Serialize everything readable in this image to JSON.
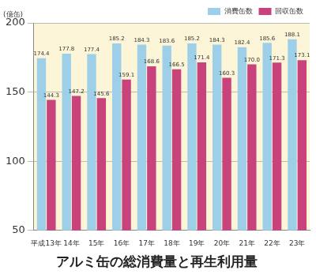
{
  "chart_data": {
    "type": "bar",
    "title": "アルミ缶の総消費量と再生利用量",
    "ylabel": "(億缶)",
    "categories": [
      "平成13年",
      "14年",
      "15年",
      "16年",
      "17年",
      "18年",
      "19年",
      "20年",
      "21年",
      "22年",
      "23年"
    ],
    "series": [
      {
        "name": "消費缶数",
        "color": "#9dd0e8",
        "values": [
          174.4,
          177.8,
          177.4,
          185.2,
          184.3,
          183.6,
          185.2,
          184.3,
          182.4,
          185.6,
          188.1
        ]
      },
      {
        "name": "回収缶数",
        "color": "#c8427c",
        "values": [
          144.3,
          147.2,
          145.6,
          159.1,
          168.6,
          166.5,
          171.4,
          160.3,
          170.0,
          171.3,
          173.1
        ],
        "value_labels": [
          "144.3",
          "147.2",
          "145.6",
          "159.1",
          "168.6",
          "166.5",
          "171.4",
          "160.3",
          "170.0",
          "171.3",
          "173.1"
        ]
      }
    ],
    "ylim": [
      50,
      200
    ],
    "yticks": [
      50,
      100,
      150,
      200
    ],
    "grid": true,
    "legend": "top right",
    "data_labels": true
  }
}
